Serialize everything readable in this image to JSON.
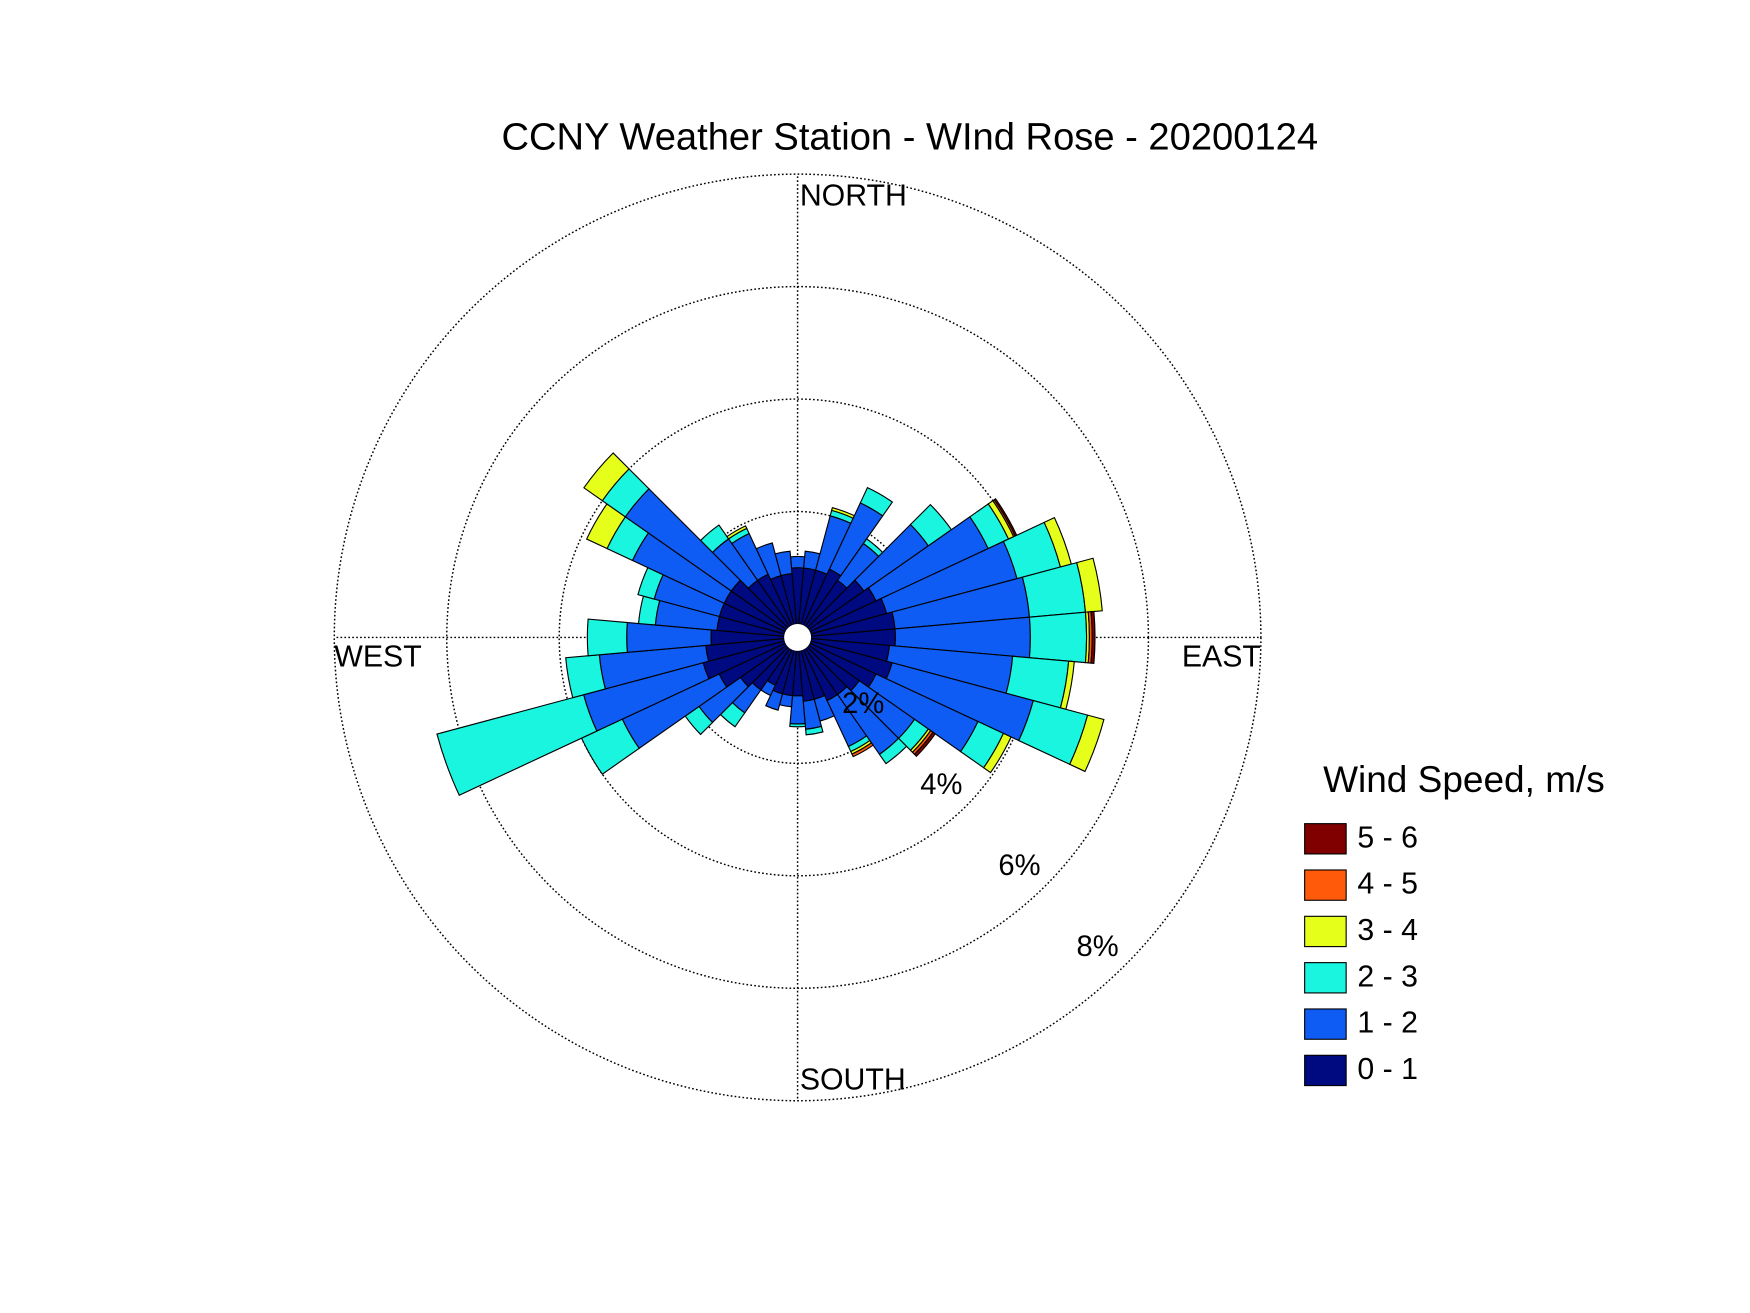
{
  "chart_data": {
    "type": "windrose",
    "title": "CCNY Weather Station - WInd Rose - 20200124",
    "legend_title": "Wind Speed, m/s",
    "legend": "right",
    "theta": [
      0,
      10,
      20,
      30,
      40,
      50,
      60,
      70,
      80,
      90,
      100,
      110,
      120,
      130,
      140,
      150,
      160,
      170,
      180,
      190,
      200,
      210,
      220,
      230,
      240,
      250,
      260,
      270,
      280,
      290,
      300,
      310,
      320,
      330,
      340,
      350
    ],
    "thetaticks": [
      {
        "value": 0,
        "label": "NORTH"
      },
      {
        "value": 90,
        "label": "EAST"
      },
      {
        "value": 180,
        "label": "SOUTH"
      },
      {
        "value": 270,
        "label": "WEST"
      }
    ],
    "rlim": [
      0,
      8
    ],
    "rticks": [
      {
        "value": 2,
        "label": "2%"
      },
      {
        "value": 4,
        "label": "4%"
      },
      {
        "value": 6,
        "label": "6%"
      },
      {
        "value": 8,
        "label": "8%"
      }
    ],
    "grid": true,
    "series": [
      {
        "name": "0 - 1",
        "color": "#000a80",
        "values": [
          1.0,
          1.0,
          1.0,
          1.1,
          1.0,
          1.2,
          1.3,
          1.4,
          1.5,
          1.5,
          1.4,
          1.5,
          1.3,
          1.1,
          1.0,
          1.0,
          0.9,
          0.9,
          0.8,
          0.8,
          0.8,
          0.7,
          0.9,
          1.0,
          1.3,
          1.5,
          1.4,
          1.3,
          1.2,
          1.2,
          1.2,
          1.2,
          1.0,
          1.0,
          0.9,
          0.9
        ]
      },
      {
        "name": "1 - 2",
        "color": "#0f5cf5",
        "values": [
          0.2,
          0.3,
          1.0,
          1.3,
          0.8,
          1.4,
          2.2,
          2.4,
          2.4,
          2.4,
          2.2,
          2.6,
          2.0,
          1.2,
          1.3,
          0.9,
          0.4,
          0.5,
          0.5,
          0.2,
          0.3,
          0.2,
          0.5,
          0.9,
          1.9,
          2.2,
          1.9,
          1.5,
          1.1,
          1.2,
          1.8,
          2.3,
          0.9,
          0.8,
          0.6,
          0.4
        ]
      },
      {
        "name": "2 - 3",
        "color": "#1af5e0",
        "values": [
          0,
          0,
          0.1,
          0.3,
          0.1,
          0.5,
          0.4,
          0.8,
          1.0,
          1.0,
          1.0,
          1.0,
          0.5,
          0.3,
          0.2,
          0.1,
          0,
          0.1,
          0.05,
          0,
          0,
          0,
          0.3,
          0.3,
          0.8,
          2.7,
          0.6,
          0.7,
          0.3,
          0.3,
          0.5,
          0.5,
          0.3,
          0.1,
          0,
          0
        ]
      },
      {
        "name": "3 - 4",
        "color": "#e6ff1a",
        "values": [
          0,
          0,
          0.05,
          0,
          0,
          0,
          0.1,
          0.2,
          0.3,
          0.05,
          0.1,
          0.3,
          0.15,
          0.05,
          0,
          0.05,
          0,
          0,
          0,
          0,
          0,
          0,
          0,
          0,
          0,
          0,
          0,
          0,
          0,
          0,
          0.4,
          0.4,
          0,
          0.05,
          0,
          0
        ]
      },
      {
        "name": "4 - 5",
        "color": "#ff5a0a",
        "values": [
          0,
          0,
          0,
          0,
          0,
          0,
          0.03,
          0,
          0,
          0.05,
          0,
          0,
          0,
          0.05,
          0,
          0.05,
          0,
          0,
          0,
          0,
          0,
          0,
          0,
          0,
          0,
          0,
          0,
          0,
          0,
          0,
          0,
          0,
          0,
          0,
          0,
          0
        ]
      },
      {
        "name": "5 - 6",
        "color": "#800000",
        "values": [
          0,
          0,
          0,
          0,
          0,
          0,
          0.03,
          0,
          0,
          0.05,
          0,
          0,
          0,
          0.05,
          0,
          0,
          0,
          0,
          0,
          0,
          0,
          0,
          0,
          0,
          0,
          0,
          0,
          0,
          0,
          0,
          0,
          0,
          0,
          0,
          0,
          0
        ]
      }
    ]
  }
}
